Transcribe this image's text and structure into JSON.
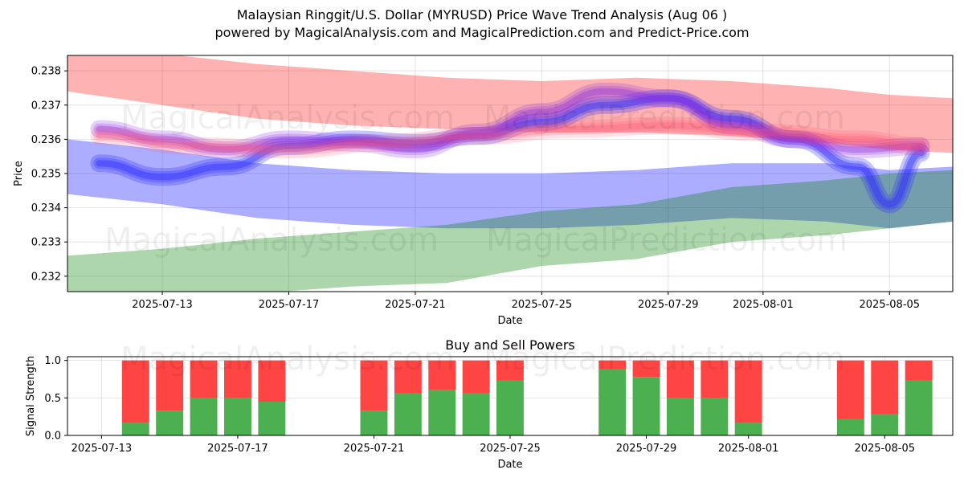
{
  "title": "Malaysian Ringgit/U.S. Dollar (MYRUSD) Price Wave Trend Analysis (Aug 06 )",
  "subtitle": "powered by MagicalAnalysis.com and MagicalPrediction.com and Predict-Price.com",
  "watermark": [
    "MagicalAnalysis.com",
    "MagicalPrediction.com"
  ],
  "colors": {
    "red_band": "#ff0000",
    "blue_band": "#0000ff",
    "green_band": "#008000",
    "buy": "#4caf50",
    "sell": "#ff4444"
  },
  "chart_data": [
    {
      "type": "area",
      "xlabel": "Date",
      "ylabel": "Price",
      "x_ticks": [
        "2025-07-13",
        "2025-07-17",
        "2025-07-21",
        "2025-07-25",
        "2025-07-29",
        "2025-08-01",
        "2025-08-05"
      ],
      "y_ticks": [
        "0.232",
        "0.233",
        "0.234",
        "0.235",
        "0.236",
        "0.237",
        "0.238"
      ],
      "xlim": [
        "2025-07-10",
        "2025-08-07"
      ],
      "ylim": [
        0.23155,
        0.23845
      ],
      "grid": true,
      "bands": [
        {
          "color": "red",
          "x": [
            "2025-07-10",
            "2025-07-13",
            "2025-07-16",
            "2025-07-19",
            "2025-07-22",
            "2025-07-25",
            "2025-07-28",
            "2025-07-31",
            "2025-08-03",
            "2025-08-05",
            "2025-08-07"
          ],
          "upper": [
            0.2385,
            0.2385,
            0.2382,
            0.238,
            0.2378,
            0.2377,
            0.2378,
            0.2377,
            0.2375,
            0.2373,
            0.2372
          ],
          "lower": [
            0.2374,
            0.237,
            0.2366,
            0.2364,
            0.2363,
            0.2362,
            0.2362,
            0.2361,
            0.2359,
            0.2357,
            0.2356
          ]
        },
        {
          "color": "blue",
          "x": [
            "2025-07-10",
            "2025-07-13",
            "2025-07-16",
            "2025-07-19",
            "2025-07-22",
            "2025-07-25",
            "2025-07-28",
            "2025-07-31",
            "2025-08-03",
            "2025-08-05",
            "2025-08-07"
          ],
          "upper": [
            0.236,
            0.2357,
            0.2353,
            0.2351,
            0.235,
            0.235,
            0.2351,
            0.2353,
            0.2353,
            0.2351,
            0.2352
          ],
          "lower": [
            0.2344,
            0.2341,
            0.2337,
            0.2335,
            0.2334,
            0.2334,
            0.2335,
            0.2337,
            0.2336,
            0.2334,
            0.2336
          ]
        },
        {
          "color": "green",
          "x": [
            "2025-07-10",
            "2025-07-13",
            "2025-07-16",
            "2025-07-19",
            "2025-07-22",
            "2025-07-25",
            "2025-07-28",
            "2025-07-31",
            "2025-08-03",
            "2025-08-05",
            "2025-08-07"
          ],
          "upper": [
            0.2326,
            0.2328,
            0.2331,
            0.2333,
            0.2335,
            0.2339,
            0.2341,
            0.2346,
            0.2348,
            0.235,
            0.2351
          ],
          "lower": [
            0.2315,
            0.2315,
            0.2315,
            0.2317,
            0.2318,
            0.2323,
            0.2325,
            0.233,
            0.2332,
            0.2334,
            0.2336
          ]
        }
      ],
      "waves": [
        {
          "color": "blue",
          "x": [
            "2025-07-11",
            "2025-07-13",
            "2025-07-15",
            "2025-07-17",
            "2025-07-19",
            "2025-07-21",
            "2025-07-23",
            "2025-07-25",
            "2025-07-27",
            "2025-07-29",
            "2025-07-31",
            "2025-08-02",
            "2025-08-04",
            "2025-08-05",
            "2025-08-06"
          ],
          "y": [
            0.2353,
            0.2349,
            0.2352,
            0.2358,
            0.236,
            0.2359,
            0.2361,
            0.2365,
            0.237,
            0.2372,
            0.2366,
            0.236,
            0.2352,
            0.2341,
            0.2356
          ]
        },
        {
          "color": "purple",
          "x": [
            "2025-07-11",
            "2025-07-13",
            "2025-07-15",
            "2025-07-17",
            "2025-07-19",
            "2025-07-21",
            "2025-07-23",
            "2025-07-25",
            "2025-07-27",
            "2025-07-29",
            "2025-07-31",
            "2025-08-02",
            "2025-08-04",
            "2025-08-06"
          ],
          "y": [
            0.2363,
            0.236,
            0.2357,
            0.236,
            0.2359,
            0.2357,
            0.2362,
            0.2368,
            0.2374,
            0.2372,
            0.2364,
            0.236,
            0.2357,
            0.2358
          ]
        },
        {
          "color": "red",
          "x": [
            "2025-07-11",
            "2025-07-14",
            "2025-07-17",
            "2025-07-20",
            "2025-07-23",
            "2025-07-26",
            "2025-07-29",
            "2025-08-01",
            "2025-08-04",
            "2025-08-06"
          ],
          "y": [
            0.2361,
            0.2358,
            0.2357,
            0.2359,
            0.2361,
            0.2363,
            0.2364,
            0.2362,
            0.236,
            0.2358
          ]
        }
      ]
    },
    {
      "type": "bar",
      "title": "Buy and Sell Powers",
      "xlabel": "Date",
      "ylabel": "Signal Strength",
      "x_ticks": [
        "2025-07-13",
        "2025-07-17",
        "2025-07-21",
        "2025-07-25",
        "2025-07-29",
        "2025-08-01",
        "2025-08-05"
      ],
      "y_ticks": [
        "0.0",
        "0.5",
        "1.0"
      ],
      "xlim": [
        "2025-07-12",
        "2025-08-07"
      ],
      "ylim": [
        0,
        1.05
      ],
      "categories": [
        "2025-07-14",
        "2025-07-15",
        "2025-07-16",
        "2025-07-17",
        "2025-07-18",
        "2025-07-21",
        "2025-07-22",
        "2025-07-23",
        "2025-07-24",
        "2025-07-25",
        "2025-07-28",
        "2025-07-29",
        "2025-07-30",
        "2025-07-31",
        "2025-08-01",
        "2025-08-04",
        "2025-08-05",
        "2025-08-06"
      ],
      "series": [
        {
          "name": "Buy",
          "values": [
            0.17,
            0.33,
            0.5,
            0.5,
            0.45,
            0.33,
            0.56,
            0.61,
            0.56,
            0.73,
            0.89,
            0.78,
            0.5,
            0.5,
            0.17,
            0.22,
            0.28,
            0.73
          ]
        },
        {
          "name": "Sell",
          "values": [
            0.83,
            0.67,
            0.5,
            0.5,
            0.55,
            0.67,
            0.44,
            0.39,
            0.44,
            0.27,
            0.11,
            0.22,
            0.5,
            0.5,
            0.83,
            0.78,
            0.72,
            0.27
          ]
        }
      ]
    }
  ]
}
